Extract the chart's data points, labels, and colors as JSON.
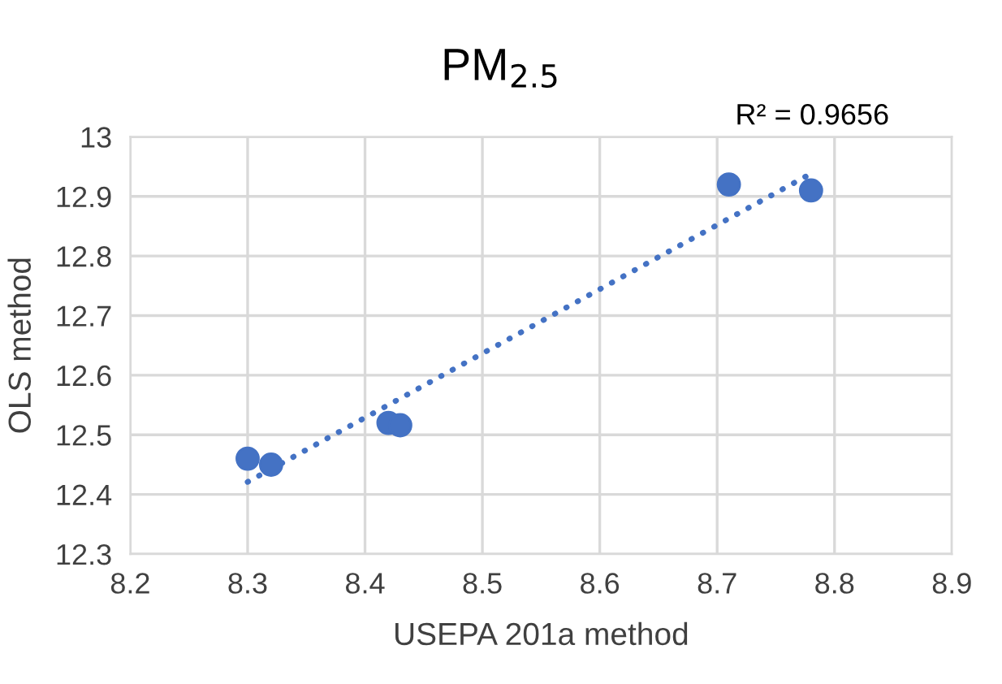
{
  "chart_data": {
    "type": "scatter",
    "title": "PM$_{2.5}$",
    "xlabel": "USEPA 201a method",
    "ylabel": "OLS method",
    "annotations": [
      "R² = 0.9656"
    ],
    "series": [
      {
        "color": "#4472c4",
        "marker": "circle",
        "x": [
          8.3,
          8.32,
          8.42,
          8.43,
          8.71,
          8.78
        ],
        "values": [
          12.46,
          12.45,
          12.52,
          12.516,
          12.92,
          12.91
        ]
      },
      {
        "type": "line",
        "color": "#4472c4",
        "line_style": "dotted",
        "x": [
          8.3,
          8.777
        ],
        "values": [
          12.421,
          12.935
        ]
      }
    ],
    "xlim": [
      8.2,
      8.9
    ],
    "xticks": [
      8.2,
      8.3,
      8.4,
      8.5,
      8.6,
      8.7,
      8.8,
      8.9
    ],
    "ylim": [
      12.3,
      13
    ],
    "yticks": [
      12.3,
      12.4,
      12.5,
      12.6,
      12.7,
      12.8,
      12.9,
      13
    ],
    "grid": true,
    "legend": false
  }
}
